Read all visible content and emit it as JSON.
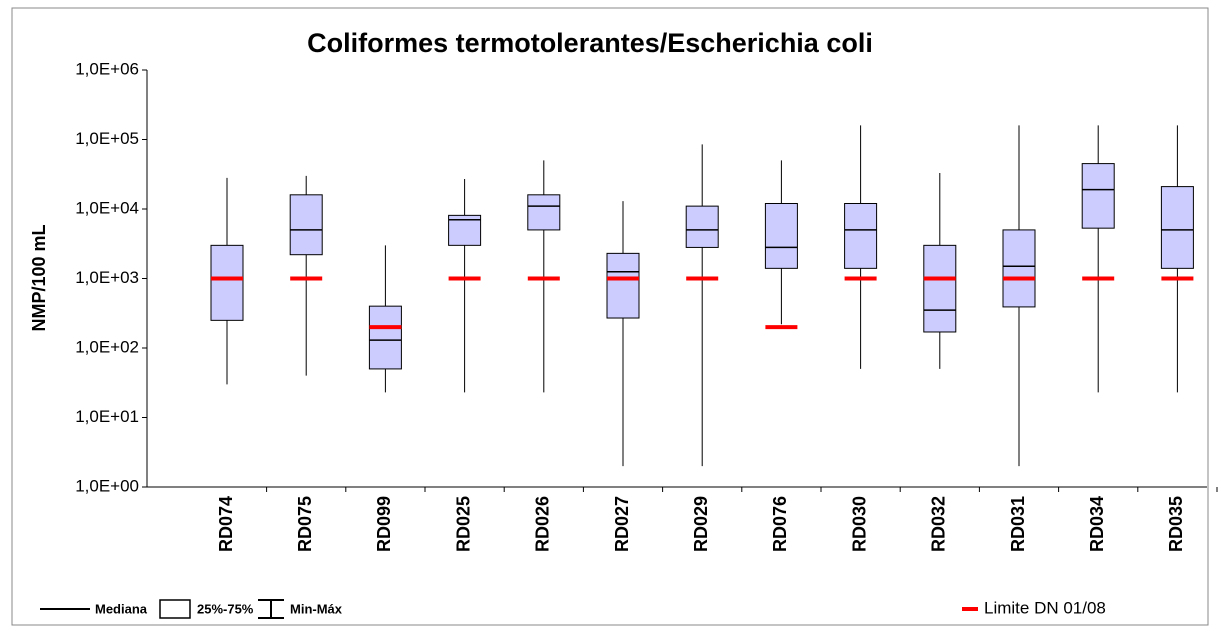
{
  "chart_data": {
    "type": "box",
    "title": "Coliformes termotolerantes/Escherichia coli",
    "y_label": "NMP/100 mL",
    "categories": [
      "RD074",
      "RD075",
      "RD099",
      "RD025",
      "RD026",
      "RD027",
      "RD029",
      "RD076",
      "RD030",
      "RD032",
      "RD031",
      "RD034",
      "RD035"
    ],
    "min": [
      30,
      40,
      23,
      23,
      23,
      2,
      2,
      220,
      50,
      50,
      2,
      23,
      23
    ],
    "q1": [
      250,
      2200,
      50,
      3000,
      5000,
      270,
      2800,
      1400,
      1400,
      170,
      390,
      5300,
      1400
    ],
    "median": [
      1000,
      5000,
      130,
      7000,
      11000,
      1250,
      5000,
      2800,
      5000,
      350,
      1500,
      19000,
      5000
    ],
    "q3": [
      3000,
      16000,
      400,
      8100,
      16000,
      2300,
      11000,
      12000,
      12000,
      3000,
      5000,
      45000,
      21000
    ],
    "max": [
      28000,
      30000,
      3000,
      27000,
      50000,
      13000,
      85000,
      50000,
      160000,
      33000,
      160000,
      160000,
      160000
    ],
    "limit": [
      1000,
      1000,
      200,
      1000,
      1000,
      1000,
      1000,
      200,
      1000,
      1000,
      1000,
      1000,
      1000
    ],
    "box_color": "#ccccff",
    "limit_color": "#ff0000",
    "log_scale": true,
    "ylim": [
      1,
      1000000
    ],
    "yticks": [
      {
        "value": 1,
        "label": "1,0E+00"
      },
      {
        "value": 10,
        "label": "1,0E+01"
      },
      {
        "value": 100,
        "label": "1,0E+02"
      },
      {
        "value": 1000,
        "label": "1,0E+03"
      },
      {
        "value": 10000,
        "label": "1,0E+04"
      },
      {
        "value": 100000,
        "label": "1,0E+05"
      },
      {
        "value": 1000000,
        "label": "1,0E+06"
      }
    ],
    "legend": {
      "median": "Mediana",
      "box": "25%-75%",
      "whisker": "Min-Máx",
      "limit": "Limite DN 01/08"
    }
  }
}
